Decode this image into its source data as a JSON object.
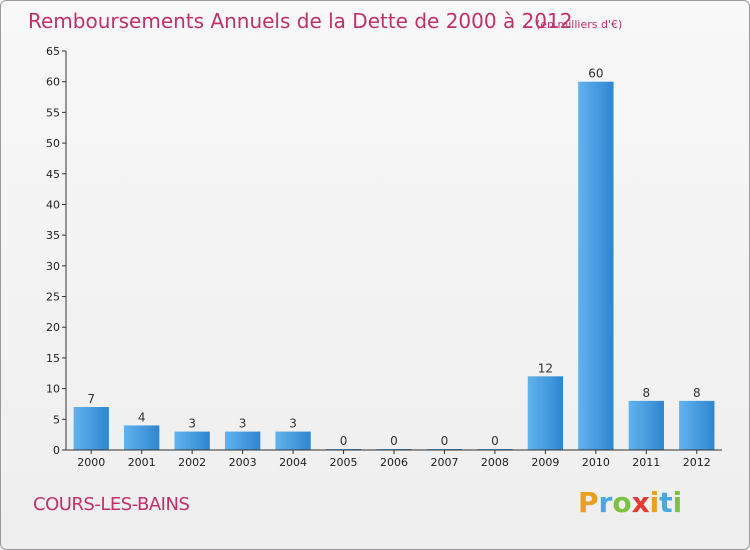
{
  "chart_data": {
    "type": "bar",
    "title": "Remboursements Annuels de la Dette de 2000 à 2012",
    "subtitle": "(en milliers d'€)",
    "categories": [
      "2000",
      "2001",
      "2002",
      "2003",
      "2004",
      "2005",
      "2006",
      "2007",
      "2008",
      "2009",
      "2010",
      "2011",
      "2012"
    ],
    "values": [
      7,
      4,
      3,
      3,
      3,
      0,
      0,
      0,
      0,
      12,
      60,
      8,
      8
    ],
    "ylim": [
      0,
      65
    ],
    "yticks": [
      0,
      5,
      10,
      15,
      20,
      25,
      30,
      35,
      40,
      45,
      50,
      55,
      60,
      65
    ],
    "xlabel": "",
    "ylabel": "",
    "grid": false,
    "bar_color": "#3d93d8"
  },
  "commune": "COURS-LES-BAINS",
  "brand": {
    "letters": [
      "P",
      "r",
      "o",
      "x",
      "i",
      "t",
      "i"
    ],
    "colors": [
      "#e8a020",
      "#4aa8e0",
      "#7cc242",
      "#e53935",
      "#e8a020",
      "#4aa8e0",
      "#7cc242"
    ]
  }
}
